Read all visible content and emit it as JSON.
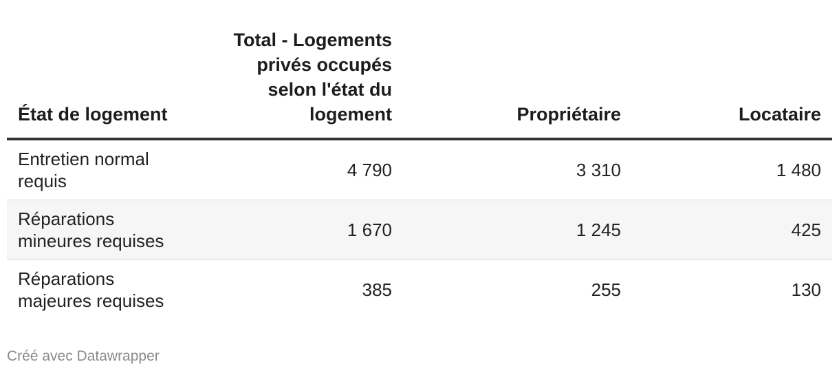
{
  "chart_data": {
    "type": "table",
    "columns": [
      "État de logement",
      "Total - Logements privés occupés selon l'état du logement",
      "Propriétaire",
      "Locataire"
    ],
    "rows": [
      {
        "label": "Entretien normal requis",
        "total": "4 790",
        "proprietaire": "3 310",
        "locataire": "1 480"
      },
      {
        "label": "Réparations mineures requises",
        "total": "1 670",
        "proprietaire": "1 245",
        "locataire": "425"
      },
      {
        "label": "Réparations majeures requises",
        "total": "385",
        "proprietaire": "255",
        "locataire": "130"
      }
    ]
  },
  "footer": "Créé avec Datawrapper"
}
